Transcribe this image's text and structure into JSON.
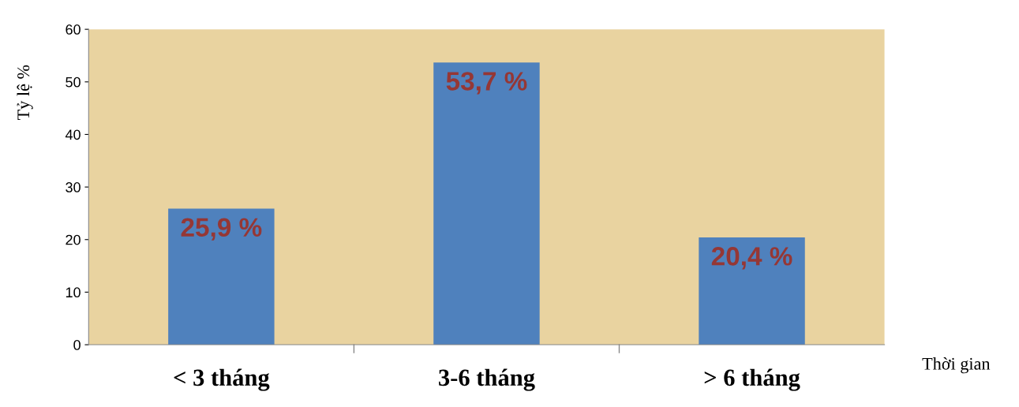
{
  "chart_data": {
    "type": "bar",
    "categories": [
      "< 3 tháng",
      "3-6 tháng",
      "> 6 tháng"
    ],
    "values": [
      25.9,
      53.7,
      20.4
    ],
    "value_labels": [
      "25,9 %",
      "53,7 %",
      "20,4 %"
    ],
    "color": "#4f81bd",
    "ylabel": "Tỷ lệ %",
    "xlabel": "Thời gian",
    "ylim": [
      0,
      60
    ],
    "yticks": [
      0,
      10,
      20,
      30,
      40,
      50,
      60
    ],
    "grid": false
  }
}
